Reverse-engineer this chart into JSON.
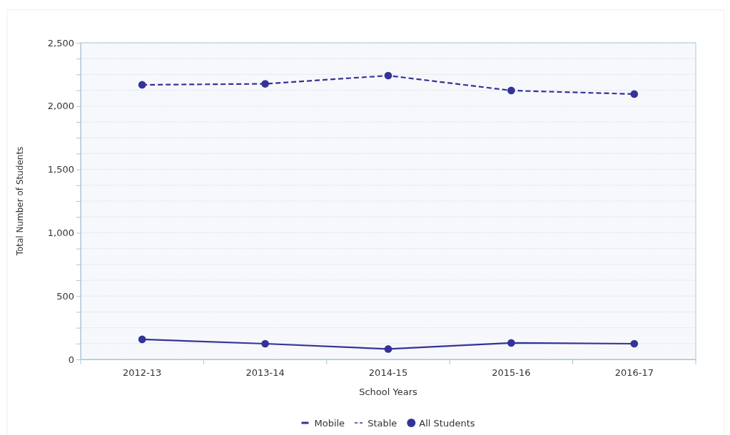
{
  "chart_data": {
    "type": "line",
    "xlabel": "School Years",
    "ylabel": "Total Number of Students",
    "categories": [
      "2012-13",
      "2013-14",
      "2014-15",
      "2015-16",
      "2016-17"
    ],
    "series": [
      {
        "name": "Mobile",
        "color": "#333399",
        "line_style": "solid",
        "values": [
          158,
          124,
          82,
          130,
          124
        ]
      },
      {
        "name": "Stable",
        "color": "#333399",
        "line_style": "dashed",
        "values": [
          2168,
          2176,
          2241,
          2123,
          2095
        ]
      }
    ],
    "ylim": [
      0,
      2500
    ],
    "yticks": [
      0,
      {
        "value": 125,
        "label": null
      },
      {
        "value": 250,
        "label": null
      },
      {
        "value": 375,
        "label": null
      },
      {
        "value": 500,
        "label": "500"
      },
      {
        "value": 625,
        "label": null
      },
      {
        "value": 750,
        "label": null
      },
      {
        "value": 875,
        "label": null
      },
      {
        "value": 1000,
        "label": "1,000"
      },
      {
        "value": 1125,
        "label": null
      },
      {
        "value": 1250,
        "label": null
      },
      {
        "value": 1375,
        "label": null
      },
      {
        "value": 1500,
        "label": "1,500"
      },
      {
        "value": 1625,
        "label": null
      },
      {
        "value": 1750,
        "label": null
      },
      {
        "value": 1875,
        "label": null
      },
      {
        "value": 2000,
        "label": "2,000"
      },
      {
        "value": 2125,
        "label": null
      },
      {
        "value": 2250,
        "label": null
      },
      {
        "value": 2375,
        "label": null
      },
      {
        "value": 2500,
        "label": "2,500"
      }
    ],
    "grid": "y",
    "marker": "circle",
    "legend": "bottom",
    "legend_title": "All Students"
  }
}
